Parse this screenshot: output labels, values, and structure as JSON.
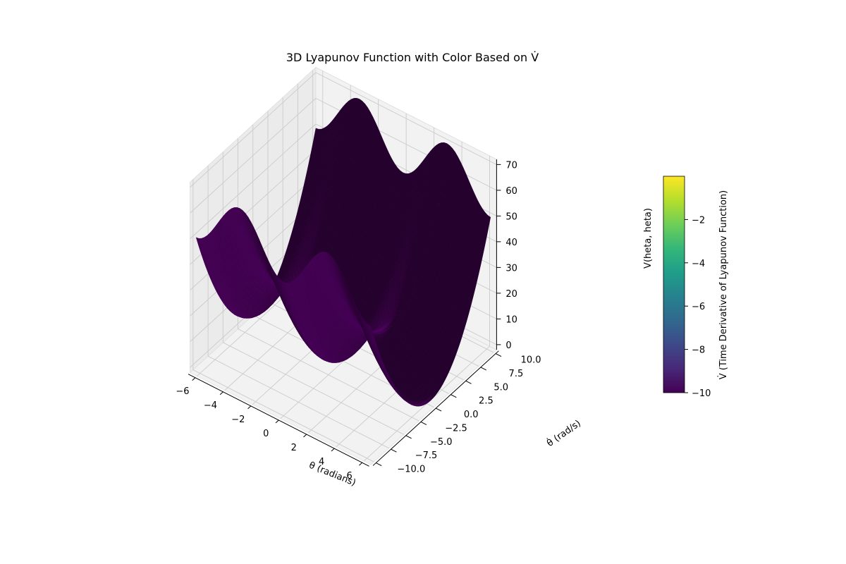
{
  "chart_data": {
    "type": "surface3d",
    "title": "3D Lyapunov Function with Color Based on V̇",
    "xlabel": "θ (radians)",
    "ylabel": "θ̇ (rad/s)",
    "zlabel": "V(heta, heta)",
    "xlim": [
      -6.5,
      6.5
    ],
    "ylim": [
      -10.5,
      10.5
    ],
    "zlim": [
      -2,
      72
    ],
    "x_ticks": [
      "−6",
      "−4",
      "−2",
      "0",
      "2",
      "4",
      "6"
    ],
    "x_tick_values": [
      -6,
      -4,
      -2,
      0,
      2,
      4,
      6
    ],
    "y_ticks": [
      "−10.0",
      "−7.5",
      "−5.0",
      "−2.5",
      "0.0",
      "2.5",
      "5.0",
      "7.5",
      "10.0"
    ],
    "y_tick_values": [
      -10,
      -7.5,
      -5,
      -2.5,
      0,
      2.5,
      5,
      7.5,
      10
    ],
    "z_ticks": [
      "0",
      "10",
      "20",
      "30",
      "40",
      "50",
      "60",
      "70"
    ],
    "z_tick_values": [
      0,
      10,
      20,
      30,
      40,
      50,
      60,
      70
    ],
    "surface": {
      "function": "V = 10*(1 - cos(theta)) + 0.5*theta_dot^2",
      "x_range": [
        -6.28,
        6.28
      ],
      "y_range": [
        -10,
        10
      ],
      "color_value": -10,
      "color": "#440154"
    },
    "colorbar": {
      "label": "V̇ (Time Derivative of Lyapunov Function)",
      "ticks": [
        "−10",
        "−8",
        "−6",
        "−4",
        "−2"
      ],
      "tick_values": [
        -10,
        -8,
        -6,
        -4,
        -2
      ],
      "range": [
        -10,
        0
      ],
      "colormap": "viridis",
      "colormap_stops": [
        "#440154",
        "#482878",
        "#3e4989",
        "#31688e",
        "#26828e",
        "#1f9e89",
        "#35b779",
        "#6ece58",
        "#b5de2b",
        "#fde725"
      ]
    },
    "grid": true,
    "pane_color": "#f2f2f2",
    "grid_color": "#c8c8c8"
  }
}
